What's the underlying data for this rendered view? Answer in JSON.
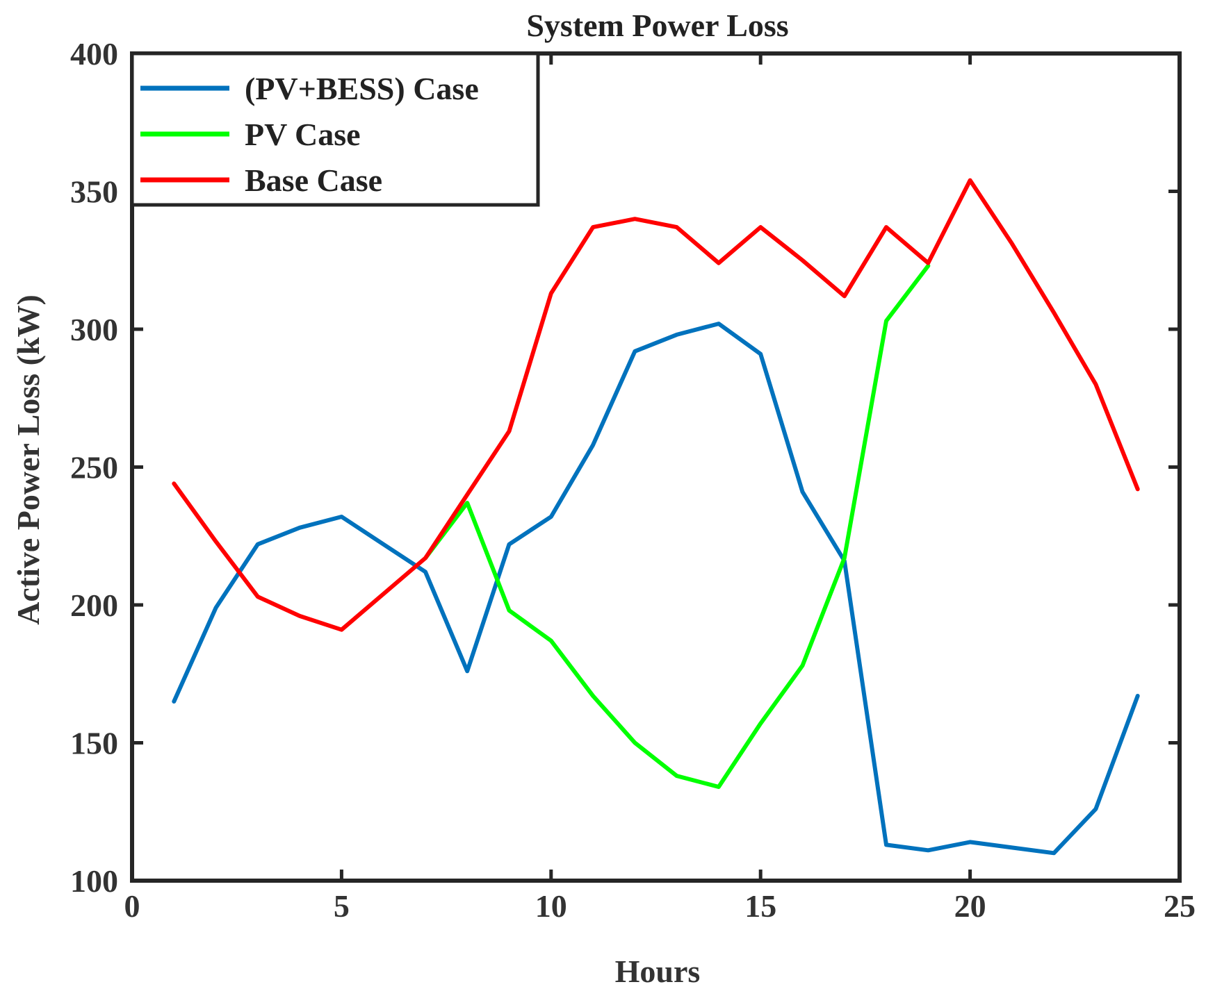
{
  "chart_data": {
    "type": "line",
    "title": "System Power Loss",
    "xlabel": "Hours",
    "ylabel": "Active Power Loss (kW)",
    "xlim": [
      0,
      25
    ],
    "ylim": [
      100,
      400
    ],
    "xticks": [
      0,
      5,
      10,
      15,
      20,
      25
    ],
    "yticks": [
      100,
      150,
      200,
      250,
      300,
      350,
      400
    ],
    "grid": false,
    "legend_position": "top-left",
    "series": [
      {
        "name": "(PV+BESS) Case",
        "color": "#0072BD",
        "x": [
          1,
          2,
          3,
          4,
          5,
          6,
          7,
          8,
          9,
          10,
          11,
          12,
          13,
          14,
          15,
          16,
          17,
          18,
          19,
          20,
          21,
          22,
          23,
          24
        ],
        "y": [
          165,
          199,
          222,
          228,
          232,
          222,
          212,
          176,
          222,
          232,
          258,
          292,
          298,
          302,
          291,
          241,
          216,
          113,
          111,
          114,
          112,
          110,
          126,
          167
        ]
      },
      {
        "name": "PV Case",
        "color": "#00FF00",
        "x": [
          7,
          8,
          9,
          10,
          11,
          12,
          13,
          14,
          15,
          16,
          17,
          18,
          19
        ],
        "y": [
          217,
          237,
          198,
          187,
          167,
          150,
          138,
          134,
          157,
          178,
          217,
          303,
          323
        ]
      },
      {
        "name": "Base Case",
        "color": "#FF0000",
        "x": [
          1,
          2,
          3,
          4,
          5,
          6,
          7,
          8,
          9,
          10,
          11,
          12,
          13,
          14,
          15,
          16,
          17,
          18,
          19,
          20,
          21,
          22,
          23,
          24
        ],
        "y": [
          244,
          223,
          203,
          196,
          191,
          204,
          217,
          240,
          263,
          313,
          337,
          340,
          337,
          324,
          337,
          325,
          312,
          337,
          324,
          354,
          331,
          306,
          280,
          242
        ]
      }
    ]
  }
}
